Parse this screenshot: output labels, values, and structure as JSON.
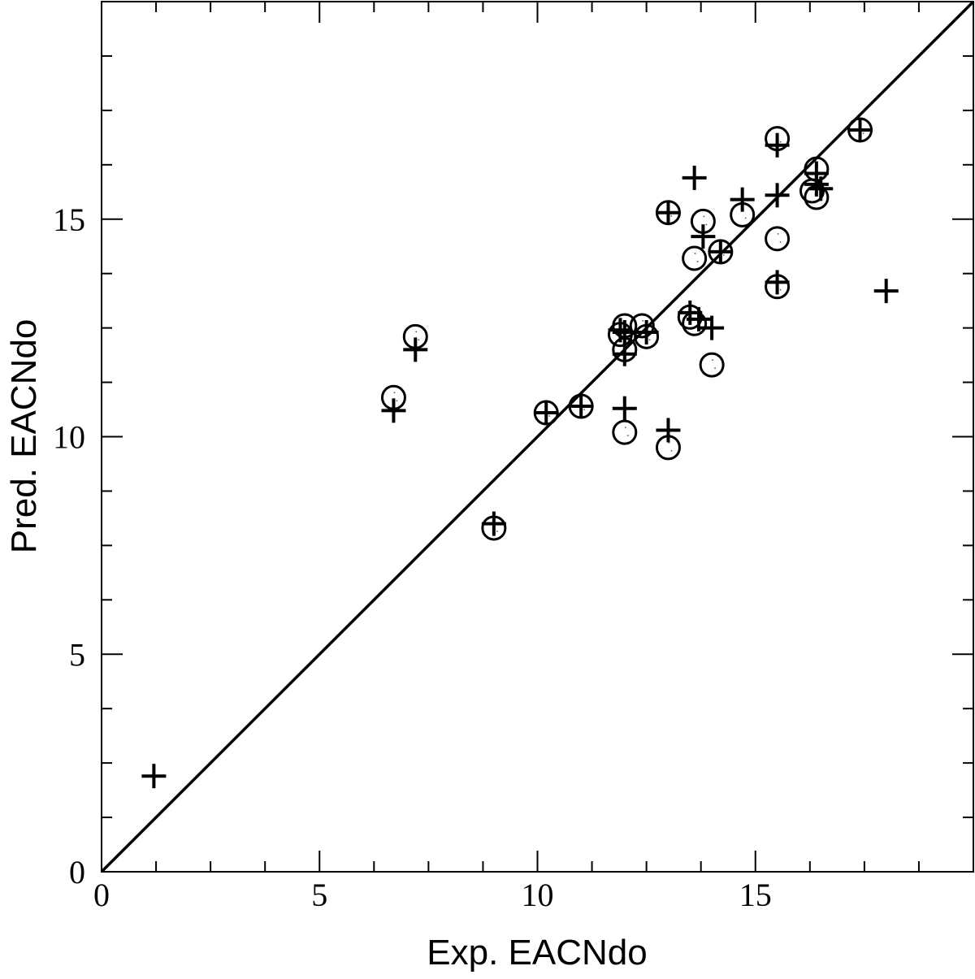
{
  "chart_data": {
    "type": "scatter",
    "title": "",
    "xlabel": "Exp. EACNdo",
    "ylabel": "Pred. EACNdo",
    "xlim": [
      0,
      20
    ],
    "ylim": [
      0,
      20
    ],
    "x_ticks": [
      0,
      5,
      10,
      15
    ],
    "y_ticks": [
      0,
      5,
      10,
      15
    ],
    "x_tick_labels": [
      "0",
      "5",
      "10",
      "15"
    ],
    "y_tick_labels": [
      "0",
      "5",
      "10",
      "15"
    ],
    "minor_tick_step": 1.25,
    "grid": false,
    "legend": "none",
    "reference_line": {
      "type": "identity",
      "from": [
        0,
        0
      ],
      "to": [
        20,
        20
      ]
    },
    "series": [
      {
        "marker": "circle",
        "points": [
          [
            6.7,
            10.9
          ],
          [
            7.2,
            12.3
          ],
          [
            9.0,
            7.9
          ],
          [
            10.2,
            10.55
          ],
          [
            11.0,
            10.7
          ],
          [
            11.9,
            12.35
          ],
          [
            12.0,
            12.55
          ],
          [
            12.0,
            12.0
          ],
          [
            12.0,
            10.1
          ],
          [
            12.4,
            12.55
          ],
          [
            12.5,
            12.3
          ],
          [
            13.0,
            9.75
          ],
          [
            13.0,
            15.15
          ],
          [
            13.5,
            12.75
          ],
          [
            13.6,
            14.1
          ],
          [
            13.6,
            12.6
          ],
          [
            13.8,
            14.95
          ],
          [
            14.0,
            11.65
          ],
          [
            14.2,
            14.25
          ],
          [
            14.7,
            15.1
          ],
          [
            15.5,
            16.85
          ],
          [
            15.5,
            14.55
          ],
          [
            15.5,
            13.45
          ],
          [
            16.3,
            15.65
          ],
          [
            16.4,
            16.15
          ],
          [
            16.4,
            15.5
          ],
          [
            17.4,
            17.05
          ]
        ]
      },
      {
        "marker": "plus",
        "points": [
          [
            1.2,
            2.2
          ],
          [
            6.7,
            10.6
          ],
          [
            7.2,
            12.0
          ],
          [
            9.0,
            8.0
          ],
          [
            10.2,
            10.55
          ],
          [
            11.0,
            10.7
          ],
          [
            11.9,
            12.45
          ],
          [
            12.0,
            12.4
          ],
          [
            12.0,
            11.9
          ],
          [
            12.0,
            10.65
          ],
          [
            12.5,
            12.4
          ],
          [
            13.0,
            10.15
          ],
          [
            13.0,
            15.15
          ],
          [
            13.5,
            12.85
          ],
          [
            13.6,
            15.95
          ],
          [
            13.7,
            12.7
          ],
          [
            13.8,
            14.6
          ],
          [
            14.0,
            12.5
          ],
          [
            14.2,
            14.25
          ],
          [
            14.7,
            15.45
          ],
          [
            15.5,
            16.7
          ],
          [
            15.5,
            15.55
          ],
          [
            15.5,
            13.55
          ],
          [
            16.4,
            15.8
          ],
          [
            16.4,
            16.05
          ],
          [
            16.5,
            15.7
          ],
          [
            17.4,
            17.05
          ],
          [
            18.0,
            13.35
          ]
        ]
      }
    ]
  }
}
